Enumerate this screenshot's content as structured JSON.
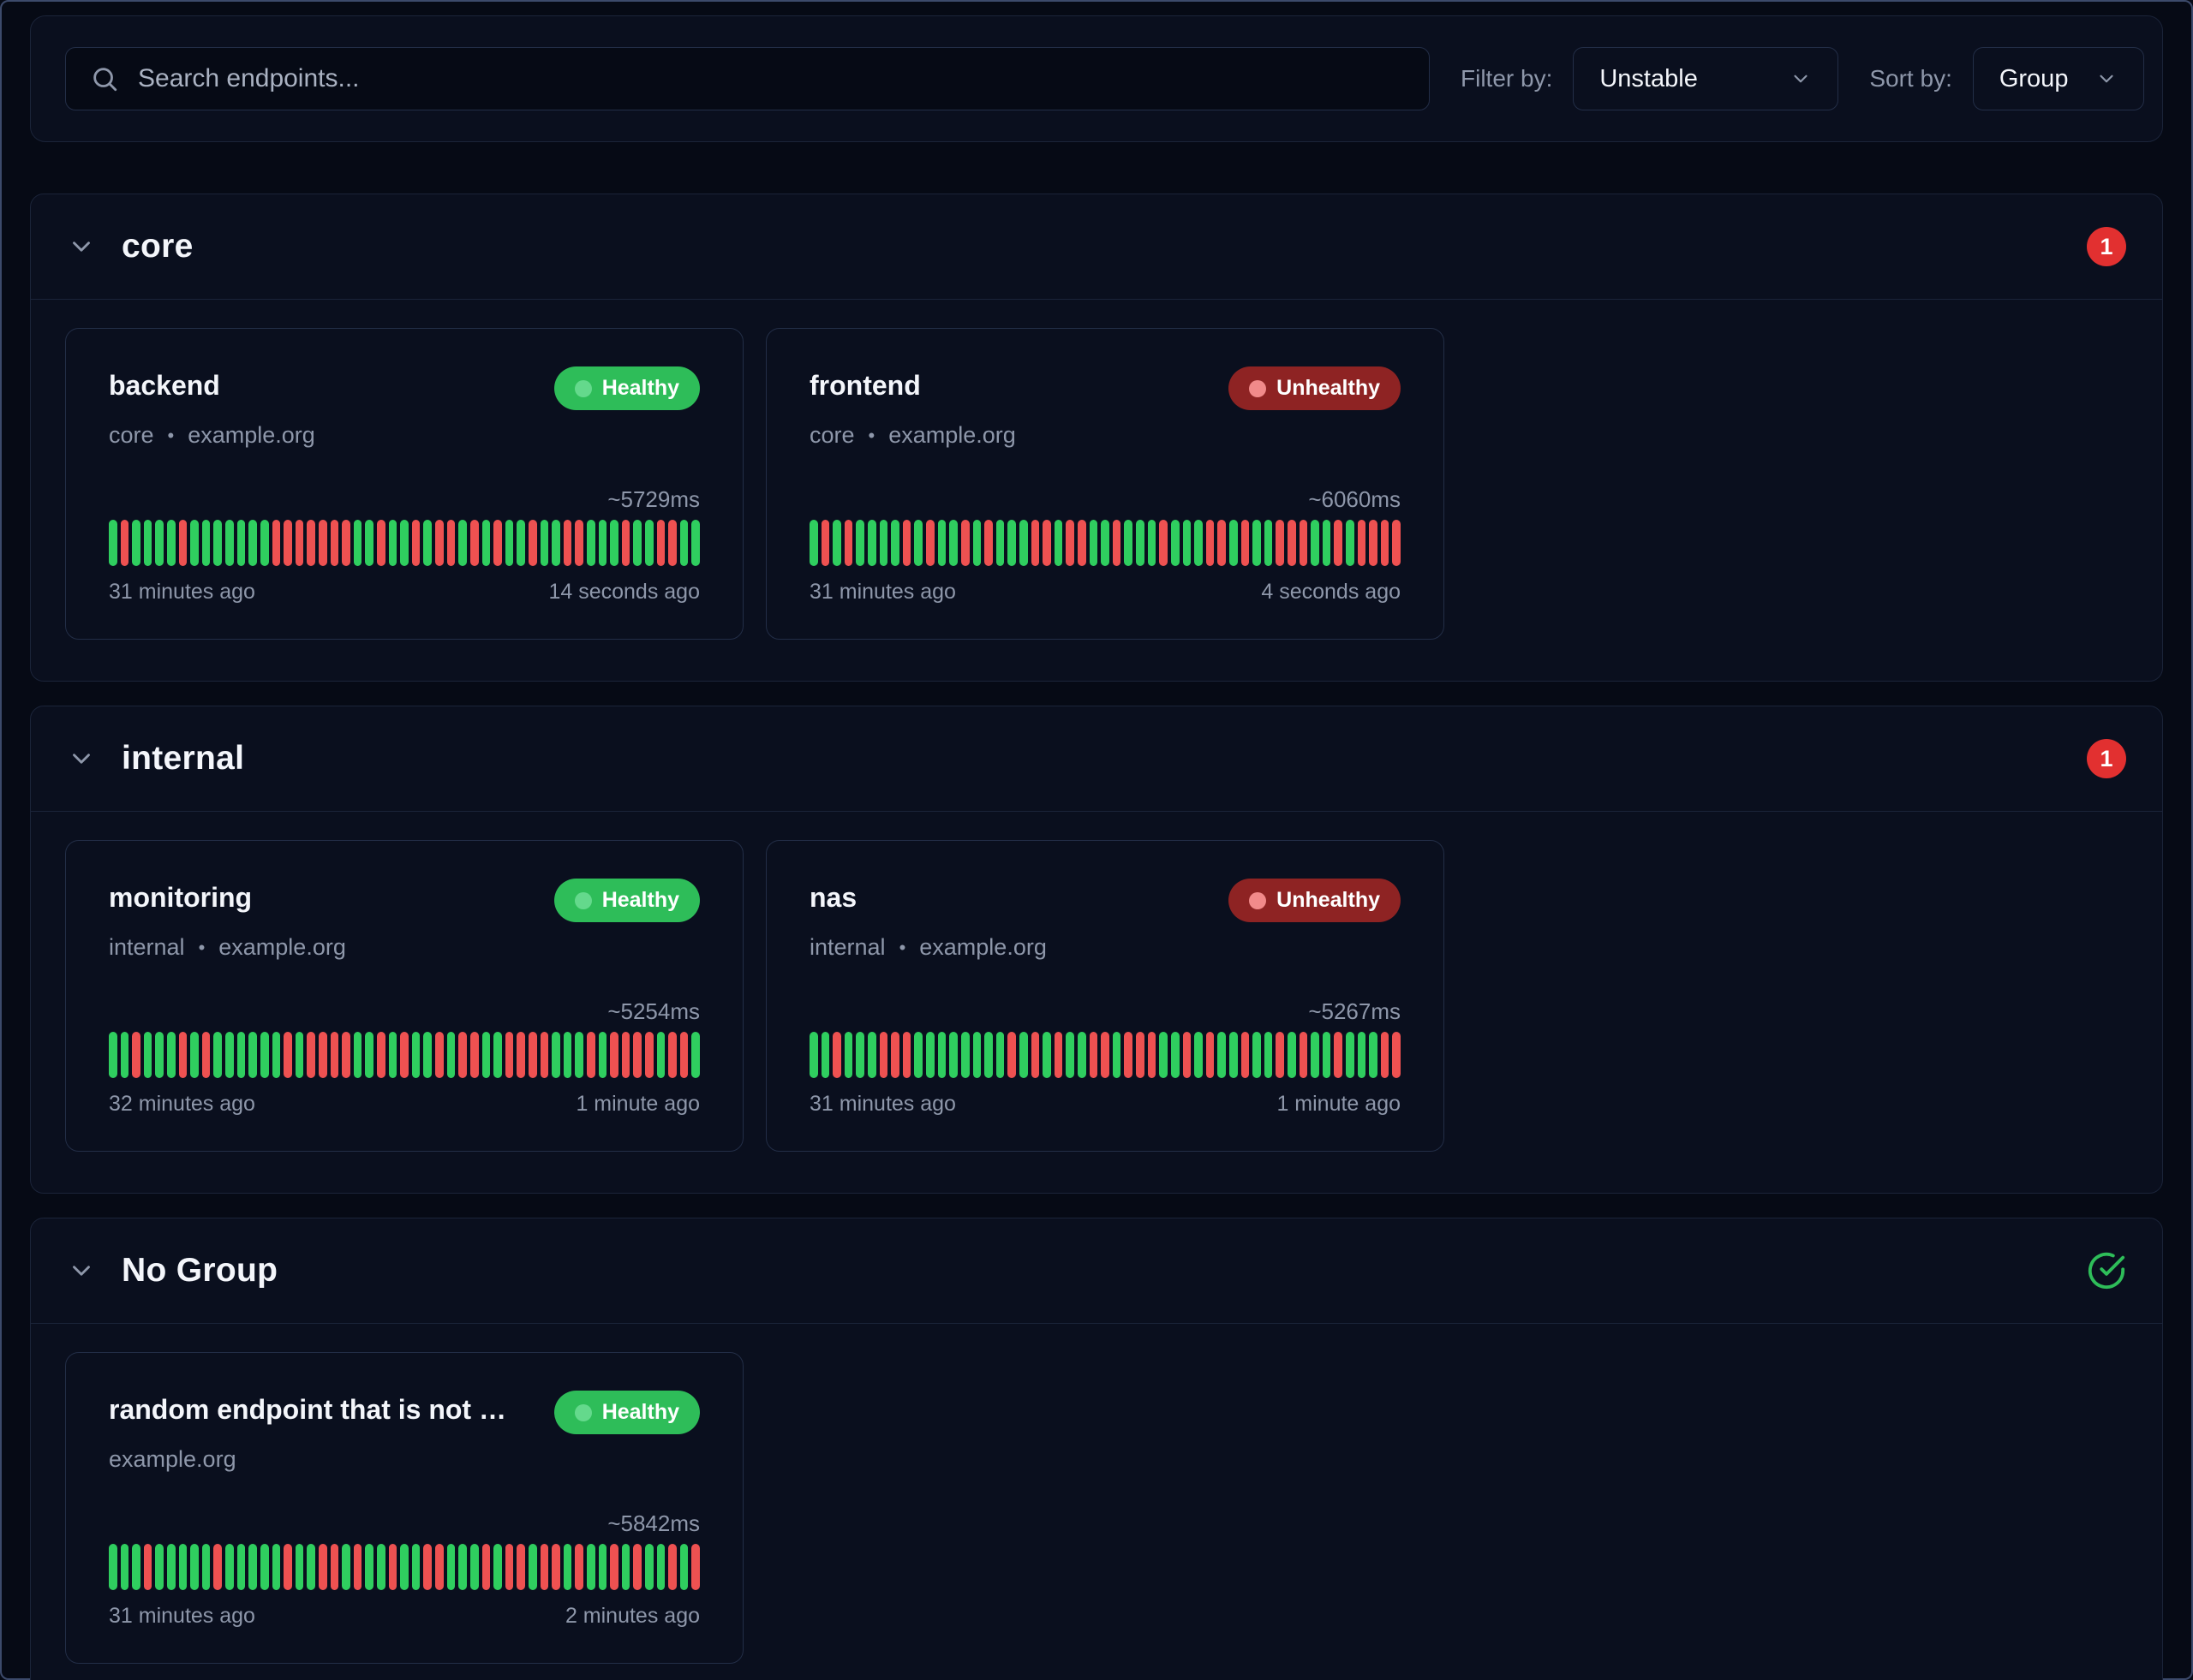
{
  "toolbar": {
    "search_placeholder": "Search endpoints...",
    "filter_label": "Filter by:",
    "filter_value": "Unstable",
    "sort_label": "Sort by:",
    "sort_value": "Group"
  },
  "colors": {
    "green": "#2ebd59",
    "bar-green": "#2fce5f",
    "bar-red": "#ee5151",
    "unhealthy": "#8e2323",
    "badge-red": "#e23030"
  },
  "groups": [
    {
      "name": "core",
      "badge": "1",
      "cards": [
        {
          "name": "backend",
          "status": "Healthy",
          "subtitle_group": "core",
          "subtitle_sep": "•",
          "subtitle_host": "example.org",
          "response_time": "~5729ms",
          "oldest": "31 minutes ago",
          "newest": "14 seconds ago",
          "bars": "grggggrgggggggrrrrrrrggrggrgrrgrgrggrggrrgggrggrrgg"
        },
        {
          "name": "frontend",
          "status": "Unhealthy",
          "subtitle_group": "core",
          "subtitle_sep": "•",
          "subtitle_host": "example.org",
          "response_time": "~6060ms",
          "oldest": "31 minutes ago",
          "newest": "4 seconds ago",
          "bars": "grgrggggrgrggrgrgggrrgrrggrgggrgggrrgrggrrrggrgrrrr"
        }
      ]
    },
    {
      "name": "internal",
      "badge": "1",
      "cards": [
        {
          "name": "monitoring",
          "status": "Healthy",
          "subtitle_group": "internal",
          "subtitle_sep": "•",
          "subtitle_host": "example.org",
          "response_time": "~5254ms",
          "oldest": "32 minutes ago",
          "newest": "1 minute ago",
          "bars": "ggrgggrgrggggggrgrrrrggrgrggrgrrggrrrrgggrgrrrrgrrg"
        },
        {
          "name": "nas",
          "status": "Unhealthy",
          "subtitle_group": "internal",
          "subtitle_sep": "•",
          "subtitle_host": "example.org",
          "response_time": "~5267ms",
          "oldest": "31 minutes ago",
          "newest": "1 minute ago",
          "bars": "ggrgggrrrggggggggrgrgrggrrgrrrggrgrggrggrgrggrgggrr"
        }
      ]
    },
    {
      "name": "No Group",
      "badge": "ok",
      "cards": [
        {
          "name": "random endpoint that is not part...",
          "status": "Healthy",
          "subtitle_group": "",
          "subtitle_sep": "",
          "subtitle_host": "example.org",
          "response_time": "~5842ms",
          "oldest": "31 minutes ago",
          "newest": "2 minutes ago",
          "bars": "gggrgggggrgggggrggrrgrggrggrrgggrgrrgrrgrggrgrggrgr"
        }
      ]
    }
  ]
}
